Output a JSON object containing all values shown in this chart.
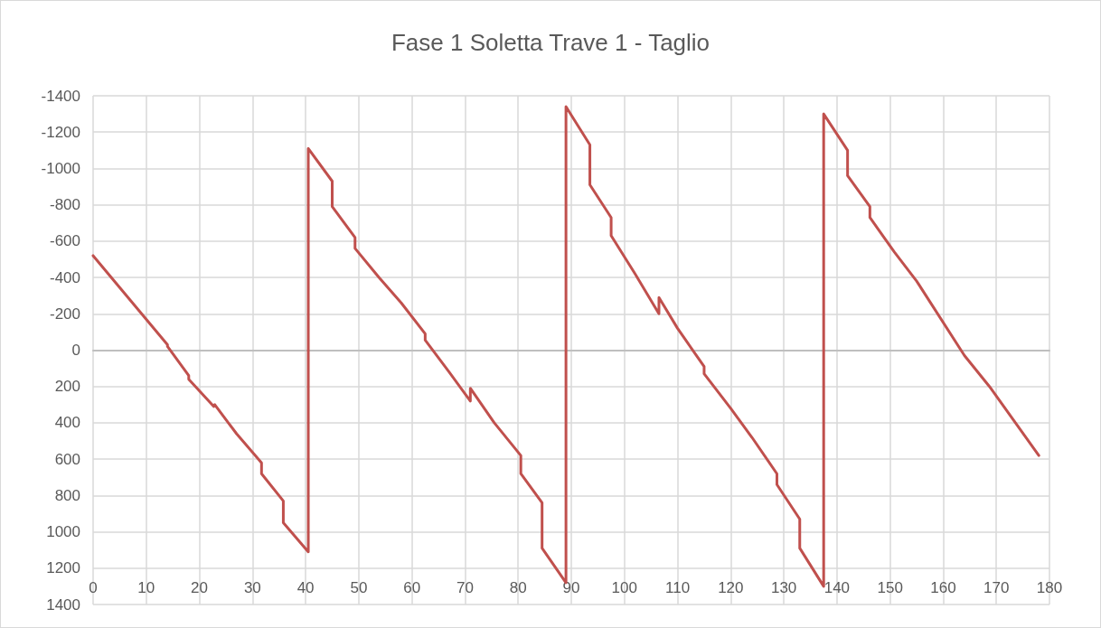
{
  "chart_data": {
    "type": "line",
    "title": "Fase 1 Soletta Trave 1 - Taglio",
    "series": [
      {
        "color": "#c0504d",
        "x": [
          0,
          14,
          14,
          18,
          18,
          22.7,
          22.9,
          27,
          31.7,
          31.7,
          35.8,
          35.8,
          40.5,
          40.5,
          45,
          45,
          49.3,
          49.3,
          53.8,
          58,
          62.5,
          62.5,
          67,
          71,
          71,
          75.5,
          80.5,
          80.5,
          84.5,
          84.5,
          89,
          89,
          93.5,
          93.5,
          97.5,
          97.5,
          102,
          106.5,
          106.5,
          110,
          115,
          115,
          120,
          124,
          128.7,
          128.7,
          133,
          133,
          137.5,
          137.5,
          142,
          142,
          146.2,
          146.2,
          150.8,
          155,
          164,
          168.7,
          178
        ],
        "values": [
          -520,
          -30,
          -20,
          140,
          160,
          310,
          300,
          460,
          620,
          680,
          830,
          950,
          1110,
          -1110,
          -930,
          -790,
          -620,
          -560,
          -400,
          -260,
          -90,
          -55,
          120,
          280,
          210,
          400,
          580,
          680,
          840,
          1090,
          1280,
          -1340,
          -1130,
          -910,
          -730,
          -630,
          -420,
          -200,
          -290,
          -120,
          90,
          130,
          320,
          480,
          680,
          740,
          930,
          1090,
          1300,
          -1300,
          -1100,
          -960,
          -790,
          -730,
          -540,
          -380,
          30,
          200,
          580
        ]
      }
    ],
    "xlim": [
      0,
      180
    ],
    "xticks": [
      0,
      10,
      20,
      30,
      40,
      50,
      60,
      70,
      80,
      90,
      100,
      110,
      120,
      130,
      140,
      150,
      160,
      170,
      180
    ],
    "ylim": [
      1400,
      -1400
    ],
    "yticks": [
      -1400,
      -1200,
      -1000,
      -800,
      -600,
      -400,
      -200,
      0,
      200,
      400,
      600,
      800,
      1000,
      1200,
      1400
    ],
    "grid": true,
    "marker": "none",
    "line_style": "solid"
  }
}
